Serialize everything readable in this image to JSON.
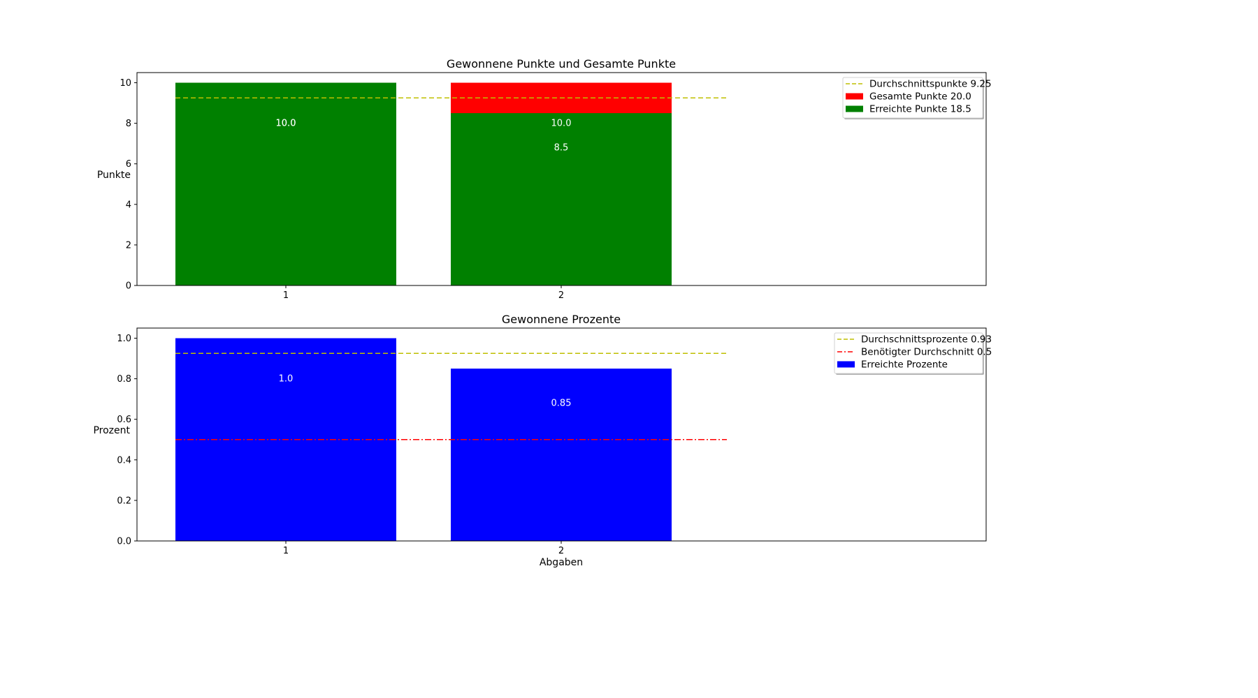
{
  "chart_data": [
    {
      "type": "bar",
      "title": "Gewonnene Punkte und Gesamte Punkte",
      "xlabel": "",
      "ylabel": "Punkte",
      "categories": [
        "1",
        "2"
      ],
      "ylim": [
        0,
        10.5
      ],
      "yticks": [
        "0",
        "2",
        "4",
        "6",
        "8",
        "10"
      ],
      "series": [
        {
          "name": "Gesamte Punkte 20.0",
          "values": [
            10.0,
            10.0
          ],
          "color": "#ff0000",
          "labels": [
            "10.0",
            "10.0"
          ]
        },
        {
          "name": "Erreichte Punkte 18.5",
          "values": [
            10.0,
            8.5
          ],
          "color": "#008000",
          "labels": [
            "10.0",
            "8.5"
          ]
        }
      ],
      "lines": [
        {
          "name": "Durchschnittspunkte 9.25",
          "value": 9.25,
          "color": "#bfbf00",
          "style": "dashed"
        }
      ],
      "legend_position": "top-right",
      "grid": false
    },
    {
      "type": "bar",
      "title": "Gewonnene Prozente",
      "xlabel": "Abgaben",
      "ylabel": "Prozent",
      "categories": [
        "1",
        "2"
      ],
      "ylim": [
        0,
        1.05
      ],
      "yticks": [
        "0.0",
        "0.2",
        "0.4",
        "0.6",
        "0.8",
        "1.0"
      ],
      "series": [
        {
          "name": "Erreichte Prozente",
          "values": [
            1.0,
            0.85
          ],
          "color": "#0000ff",
          "labels": [
            "1.0",
            "0.85"
          ]
        }
      ],
      "lines": [
        {
          "name": "Durchschnittsprozente 0.93",
          "value": 0.925,
          "color": "#bfbf00",
          "style": "dashed"
        },
        {
          "name": "Benötigter Durchschnitt 0.5",
          "value": 0.5,
          "color": "#ff0000",
          "style": "dashdot"
        }
      ],
      "legend_position": "top-right",
      "grid": false
    }
  ]
}
